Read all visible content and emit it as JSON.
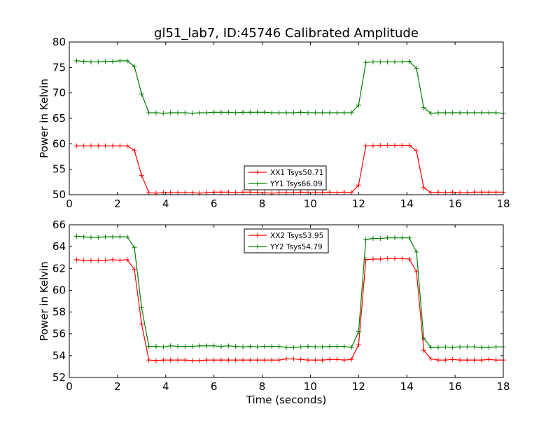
{
  "figure_title": "gl51_lab7, ID:45746 Calibrated Amplitude",
  "colors": {
    "XX": "#ff0000",
    "YY": "#008000"
  },
  "chart_data": [
    {
      "type": "line",
      "title": "gl51_lab7, ID:45746 Calibrated Amplitude",
      "xlabel": "",
      "ylabel": "Power in Kelvin",
      "xlim": [
        0,
        18
      ],
      "ylim": [
        50,
        80
      ],
      "xticks": [
        0,
        2,
        4,
        6,
        8,
        10,
        12,
        14,
        16,
        18
      ],
      "yticks": [
        50,
        55,
        60,
        65,
        70,
        75,
        80
      ],
      "legend_position": "lower-center",
      "x": [
        0.3,
        0.6,
        0.9,
        1.2,
        1.5,
        1.8,
        2.1,
        2.4,
        2.7,
        3.0,
        3.3,
        3.6,
        3.9,
        4.2,
        4.5,
        4.8,
        5.1,
        5.4,
        5.7,
        6.0,
        6.3,
        6.6,
        6.9,
        7.2,
        7.5,
        7.8,
        8.1,
        8.4,
        8.7,
        9.0,
        9.3,
        9.6,
        9.9,
        10.2,
        10.5,
        10.8,
        11.1,
        11.4,
        11.7,
        12.0,
        12.3,
        12.6,
        12.9,
        13.2,
        13.5,
        13.8,
        14.1,
        14.4,
        14.7,
        15.0,
        15.3,
        15.6,
        15.9,
        16.2,
        16.5,
        16.8,
        17.1,
        17.4,
        17.7,
        18.0
      ],
      "series": [
        {
          "name": "XX1 Tsys50.71",
          "color": "#ff0000",
          "values": [
            59.6,
            59.6,
            59.6,
            59.6,
            59.6,
            59.6,
            59.6,
            59.6,
            58.7,
            53.8,
            50.4,
            50.3,
            50.4,
            50.4,
            50.4,
            50.4,
            50.4,
            50.3,
            50.4,
            50.5,
            50.5,
            50.5,
            50.4,
            50.5,
            50.5,
            50.4,
            50.4,
            50.3,
            50.4,
            50.4,
            50.4,
            50.5,
            50.4,
            50.4,
            50.4,
            50.5,
            50.4,
            50.5,
            50.4,
            51.9,
            59.6,
            59.6,
            59.7,
            59.7,
            59.7,
            59.7,
            59.7,
            58.6,
            51.4,
            50.4,
            50.5,
            50.4,
            50.5,
            50.4,
            50.4,
            50.5,
            50.5,
            50.5,
            50.5,
            50.5
          ]
        },
        {
          "name": "YY1 Tsys66.09",
          "color": "#008000",
          "values": [
            76.3,
            76.2,
            76.1,
            76.1,
            76.2,
            76.2,
            76.3,
            76.3,
            75.2,
            69.8,
            66.1,
            66.1,
            66.0,
            66.1,
            66.1,
            66.1,
            66.0,
            66.1,
            66.1,
            66.2,
            66.2,
            66.2,
            66.1,
            66.2,
            66.2,
            66.2,
            66.2,
            66.1,
            66.1,
            66.1,
            66.1,
            66.2,
            66.1,
            66.1,
            66.1,
            66.1,
            66.1,
            66.1,
            66.1,
            67.6,
            76.0,
            76.1,
            76.1,
            76.1,
            76.1,
            76.1,
            76.2,
            74.8,
            67.1,
            66.0,
            66.1,
            66.1,
            66.1,
            66.1,
            66.1,
            66.1,
            66.1,
            66.1,
            66.1,
            66.0
          ]
        }
      ]
    },
    {
      "type": "line",
      "title": "",
      "xlabel": "Time (seconds)",
      "ylabel": "Power in Kelvin",
      "xlim": [
        0,
        18
      ],
      "ylim": [
        52,
        66
      ],
      "xticks": [
        0,
        2,
        4,
        6,
        8,
        10,
        12,
        14,
        16,
        18
      ],
      "yticks": [
        52,
        54,
        56,
        58,
        60,
        62,
        64,
        66
      ],
      "legend_position": "upper-center",
      "x": [
        0.3,
        0.6,
        0.9,
        1.2,
        1.5,
        1.8,
        2.1,
        2.4,
        2.7,
        3.0,
        3.3,
        3.6,
        3.9,
        4.2,
        4.5,
        4.8,
        5.1,
        5.4,
        5.7,
        6.0,
        6.3,
        6.6,
        6.9,
        7.2,
        7.5,
        7.8,
        8.1,
        8.4,
        8.7,
        9.0,
        9.3,
        9.6,
        9.9,
        10.2,
        10.5,
        10.8,
        11.1,
        11.4,
        11.7,
        12.0,
        12.3,
        12.6,
        12.9,
        13.2,
        13.5,
        13.8,
        14.1,
        14.4,
        14.7,
        15.0,
        15.3,
        15.6,
        15.9,
        16.2,
        16.5,
        16.8,
        17.1,
        17.4,
        17.7,
        18.0
      ],
      "series": [
        {
          "name": "XX2 Tsys53.95",
          "color": "#ff0000",
          "values": [
            62.8,
            62.75,
            62.75,
            62.75,
            62.75,
            62.8,
            62.75,
            62.8,
            61.9,
            56.9,
            53.6,
            53.55,
            53.6,
            53.6,
            53.6,
            53.6,
            53.55,
            53.55,
            53.6,
            53.6,
            53.6,
            53.6,
            53.6,
            53.6,
            53.6,
            53.6,
            53.6,
            53.6,
            53.6,
            53.7,
            53.7,
            53.65,
            53.6,
            53.6,
            53.6,
            53.65,
            53.65,
            53.6,
            53.65,
            55.0,
            62.8,
            62.85,
            62.85,
            62.9,
            62.9,
            62.9,
            62.85,
            61.7,
            54.5,
            53.7,
            53.6,
            53.6,
            53.65,
            53.6,
            53.6,
            53.6,
            53.6,
            53.65,
            53.6,
            53.6
          ]
        },
        {
          "name": "YY2 Tsys54.79",
          "color": "#008000",
          "values": [
            64.95,
            64.9,
            64.85,
            64.85,
            64.9,
            64.9,
            64.9,
            64.9,
            63.9,
            58.4,
            54.85,
            54.85,
            54.8,
            54.9,
            54.85,
            54.85,
            54.85,
            54.9,
            54.9,
            54.9,
            54.85,
            54.9,
            54.85,
            54.8,
            54.85,
            54.8,
            54.85,
            54.85,
            54.85,
            54.75,
            54.75,
            54.8,
            54.85,
            54.8,
            54.8,
            54.85,
            54.85,
            54.85,
            54.75,
            56.2,
            64.65,
            64.75,
            64.75,
            64.8,
            64.8,
            64.8,
            64.8,
            63.5,
            55.6,
            54.75,
            54.75,
            54.8,
            54.75,
            54.8,
            54.8,
            54.8,
            54.75,
            54.75,
            54.8,
            54.8
          ]
        }
      ]
    }
  ]
}
